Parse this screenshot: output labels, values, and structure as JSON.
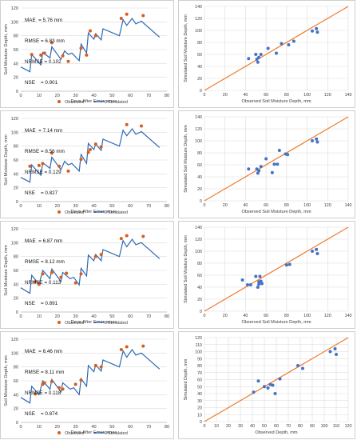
{
  "chart_data": [
    {
      "type": "line",
      "xlabel": "Days After Emergence",
      "ylabel": "Soil Moisture Depth, mm",
      "xlim": [
        0,
        80
      ],
      "ylim": [
        0,
        120
      ],
      "xticks": [
        0,
        10,
        20,
        30,
        40,
        50,
        60,
        70,
        80
      ],
      "yticks": [
        0,
        20,
        40,
        60,
        80,
        100,
        120
      ],
      "legend": {
        "placement": "bottom",
        "observed": "Observed",
        "simulated": "Simulated"
      },
      "stats": {
        "mae": "MAE  = 5.76 mm",
        "rmse": "RMSE = 6.83 mm",
        "nrmse": "NRMSE = 0.102",
        "nse": "NSE    = 0.901"
      },
      "series": [
        {
          "name": "Observed",
          "kind": "scatter",
          "x": [
            6,
            11,
            13,
            17,
            23,
            26,
            33,
            36,
            38,
            41,
            55,
            58,
            67
          ],
          "y": [
            53,
            52,
            55,
            70,
            51,
            43,
            62,
            52,
            87,
            80,
            105,
            111,
            109
          ]
        },
        {
          "name": "Simulated",
          "kind": "line",
          "x": [
            0,
            5,
            6,
            11,
            12,
            16,
            17,
            22,
            24,
            26,
            28,
            32,
            33,
            36,
            37,
            40,
            41,
            44,
            45,
            54,
            56,
            58,
            61,
            63,
            66,
            76
          ],
          "y": [
            35,
            28,
            53,
            38,
            56,
            48,
            64,
            46,
            58,
            53,
            55,
            44,
            68,
            55,
            84,
            75,
            83,
            74,
            90,
            80,
            103,
            95,
            105,
            97,
            101,
            78
          ]
        }
      ]
    },
    {
      "type": "scatter",
      "xlabel": "Observed Soil Moisture Depth, mm",
      "ylabel": "Simulated Soil Moisture Depth, mm",
      "xlim": [
        0,
        140
      ],
      "ylim": [
        0,
        140
      ],
      "xticks": [
        0,
        20,
        40,
        60,
        80,
        100,
        120,
        140
      ],
      "yticks": [
        0,
        20,
        40,
        60,
        80,
        100,
        120,
        140
      ],
      "one_to_one_line": true,
      "x": [
        43,
        50,
        52,
        51,
        53,
        55,
        62,
        70,
        75,
        82,
        87,
        105,
        110,
        109
      ],
      "y": [
        53,
        60,
        47,
        52,
        55,
        60,
        70,
        62,
        78,
        76,
        82,
        99,
        97,
        103
      ]
    },
    {
      "type": "line",
      "xlabel": "Days After Emergence",
      "ylabel": "Soil Moisture Depth, mm",
      "xlim": [
        0,
        80
      ],
      "ylim": [
        0,
        120
      ],
      "xticks": [
        0,
        10,
        20,
        30,
        40,
        50,
        60,
        70,
        80
      ],
      "yticks": [
        0,
        20,
        40,
        60,
        80,
        100,
        120
      ],
      "legend": {
        "placement": "bottom",
        "observed": "Observed",
        "simulated": "Simulated"
      },
      "stats": {
        "mae": "MAE  = 7.14 mm",
        "rmse": "RMSE = 8.56 mm",
        "nrmse": "NRMSE = 0.129",
        "nse": "NSE    = 0.827"
      },
      "series": [
        {
          "name": "Observed",
          "kind": "scatter",
          "x": [
            5,
            10,
            12,
            17,
            21,
            26,
            33,
            37,
            38,
            41,
            44,
            58,
            66
          ],
          "y": [
            51,
            52,
            55,
            70,
            51,
            44,
            61,
            71,
            75,
            83,
            79,
            111,
            109
          ]
        },
        {
          "name": "Simulated",
          "kind": "line",
          "x": [
            0,
            5,
            6,
            11,
            12,
            16,
            17,
            22,
            24,
            26,
            28,
            32,
            33,
            36,
            37,
            40,
            41,
            44,
            45,
            54,
            56,
            58,
            61,
            63,
            66,
            76
          ],
          "y": [
            35,
            28,
            53,
            38,
            56,
            48,
            64,
            46,
            58,
            53,
            55,
            44,
            68,
            55,
            84,
            75,
            83,
            74,
            90,
            80,
            103,
            95,
            105,
            97,
            101,
            78
          ]
        }
      ]
    },
    {
      "type": "scatter",
      "xlabel": "Observed Soil Moisture Depth, mm",
      "ylabel": "Simulated Soil Moisture Depth, mm",
      "xlim": [
        0,
        140
      ],
      "ylim": [
        0,
        140
      ],
      "xticks": [
        0,
        20,
        40,
        60,
        80,
        100,
        120,
        140
      ],
      "yticks": [
        0,
        20,
        40,
        60,
        80,
        100,
        120,
        140
      ],
      "one_to_one_line": true,
      "x": [
        43,
        51,
        53,
        52,
        55,
        60,
        66,
        68,
        71,
        73,
        79,
        81,
        105,
        110,
        109
      ],
      "y": [
        53,
        53,
        50,
        46,
        57,
        70,
        47,
        61,
        61,
        84,
        78,
        77,
        100,
        98,
        103
      ]
    },
    {
      "type": "line",
      "xlabel": "Days After Emergence",
      "ylabel": "Soil Moisture Depth, mm",
      "xlim": [
        0,
        80
      ],
      "ylim": [
        0,
        120
      ],
      "xticks": [
        0,
        10,
        20,
        30,
        40,
        50,
        60,
        70,
        80
      ],
      "yticks": [
        0,
        20,
        40,
        60,
        80,
        100,
        120
      ],
      "legend": {
        "placement": "bottom",
        "observed": "Observed",
        "simulated": "Simulated"
      },
      "stats": {
        "mae": "MAE  = 6.87 mm",
        "rmse": "RMSE = 8.12 mm",
        "nrmse": "NRMSE = 0.113",
        "nse": "NSE    = 0.891"
      },
      "series": [
        {
          "name": "Observed",
          "kind": "scatter",
          "x": [
            8,
            10,
            12,
            17,
            22,
            25,
            30,
            33,
            41,
            44,
            55,
            58,
            67
          ],
          "y": [
            44,
            40,
            55,
            57,
            50,
            56,
            42,
            55,
            80,
            83,
            106,
            110,
            109
          ]
        },
        {
          "name": "Simulated",
          "kind": "line",
          "x": [
            0,
            5,
            6,
            10,
            12,
            16,
            17,
            22,
            23,
            27,
            29,
            32,
            33,
            36,
            37,
            40,
            41,
            44,
            45,
            54,
            56,
            58,
            61,
            63,
            66,
            76
          ],
          "y": [
            35,
            27,
            53,
            40,
            60,
            48,
            62,
            44,
            57,
            48,
            50,
            39,
            63,
            52,
            82,
            74,
            83,
            74,
            90,
            80,
            103,
            94,
            105,
            97,
            100,
            77
          ]
        }
      ]
    },
    {
      "type": "scatter",
      "xlabel": "Observed Soil Moisture Depth, mm",
      "ylabel": "Simulated Soil Moisture Depth, mm",
      "xlim": [
        0,
        140
      ],
      "ylim": [
        0,
        140
      ],
      "xticks": [
        0,
        20,
        40,
        60,
        80,
        100,
        120,
        140
      ],
      "yticks": [
        0,
        20,
        40,
        60,
        80,
        100,
        120,
        140
      ],
      "one_to_one_line": true,
      "x": [
        37,
        42,
        45,
        50,
        52,
        53,
        55,
        54,
        53,
        56,
        80,
        83,
        105,
        110,
        109
      ],
      "y": [
        52,
        44,
        44,
        58,
        40,
        49,
        50,
        58,
        45,
        46,
        77,
        78,
        100,
        96,
        103
      ]
    },
    {
      "type": "line",
      "xlabel": "Days After Emergence",
      "ylabel": "Soil Moisture Depth, mm",
      "xlim": [
        0,
        80
      ],
      "ylim": [
        0,
        120
      ],
      "xticks": [
        0,
        10,
        20,
        30,
        40,
        50,
        60,
        70,
        80
      ],
      "yticks": [
        0,
        20,
        40,
        60,
        80,
        100,
        120
      ],
      "legend": {
        "placement": "bottom",
        "observed": "Observed",
        "simulated": "Simulated"
      },
      "stats": {
        "mae": "MAE  = 6.46 mm",
        "rmse": "RMSE = 8.11 mm",
        "nrmse": "NRMSE = 0.118",
        "nse": "NSE    = 0.874"
      },
      "series": [
        {
          "name": "Observed",
          "kind": "scatter",
          "x": [
            8,
            12,
            13,
            17,
            21,
            23,
            30,
            33,
            41,
            44,
            55,
            58,
            67
          ],
          "y": [
            41,
            55,
            57,
            59,
            50,
            48,
            55,
            61,
            82,
            80,
            105,
            109,
            110
          ]
        },
        {
          "name": "Simulated",
          "kind": "line",
          "x": [
            0,
            5,
            6,
            10,
            12,
            16,
            17,
            22,
            23,
            27,
            29,
            32,
            33,
            36,
            37,
            40,
            41,
            44,
            45,
            54,
            56,
            58,
            61,
            63,
            66,
            76
          ],
          "y": [
            36,
            28,
            52,
            40,
            60,
            48,
            62,
            44,
            57,
            48,
            50,
            40,
            63,
            52,
            82,
            73,
            83,
            74,
            90,
            80,
            103,
            94,
            105,
            97,
            100,
            77
          ]
        }
      ]
    },
    {
      "type": "scatter",
      "xlabel": "Observed Depth, mm",
      "ylabel": "Simulated Depth, mm",
      "xlim": [
        0,
        120
      ],
      "ylim": [
        0,
        120
      ],
      "xticks": [
        0,
        10,
        20,
        30,
        40,
        50,
        60,
        70,
        80,
        90,
        100,
        110,
        120
      ],
      "yticks": [
        0,
        10,
        20,
        30,
        40,
        50,
        60,
        70,
        80,
        90,
        100,
        110,
        120
      ],
      "one_to_one_line": true,
      "x": [
        41,
        45,
        50,
        53,
        55,
        57,
        59,
        63,
        78,
        82,
        105,
        110,
        109
      ],
      "y": [
        42,
        58,
        50,
        48,
        53,
        52,
        40,
        61,
        80,
        76,
        100,
        96,
        104
      ]
    }
  ]
}
